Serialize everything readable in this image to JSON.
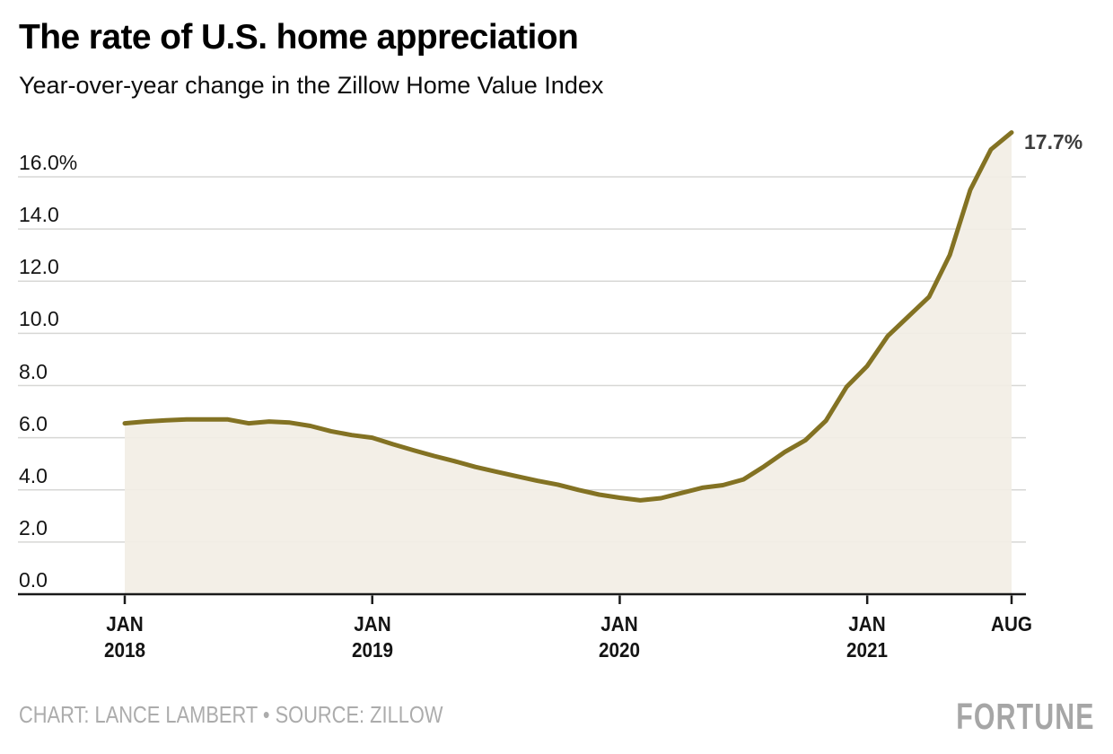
{
  "chart_data": {
    "type": "area",
    "title": "The rate of U.S. home appreciation",
    "subtitle": "Year-over-year change in the Zillow Home Value Index",
    "unit": "%",
    "categories": [
      "Jan 2018",
      "Feb 2018",
      "Mar 2018",
      "Apr 2018",
      "May 2018",
      "Jun 2018",
      "Jul 2018",
      "Aug 2018",
      "Sep 2018",
      "Oct 2018",
      "Nov 2018",
      "Dec 2018",
      "Jan 2019",
      "Feb 2019",
      "Mar 2019",
      "Apr 2019",
      "May 2019",
      "Jun 2019",
      "Jul 2019",
      "Aug 2019",
      "Sep 2019",
      "Oct 2019",
      "Nov 2019",
      "Dec 2019",
      "Jan 2020",
      "Feb 2020",
      "Mar 2020",
      "Apr 2020",
      "May 2020",
      "Jun 2020",
      "Jul 2020",
      "Aug 2020",
      "Sep 2020",
      "Oct 2020",
      "Nov 2020",
      "Dec 2020",
      "Jan 2021",
      "Feb 2021",
      "Mar 2021",
      "Apr 2021",
      "May 2021",
      "Jun 2021",
      "Jul 2021",
      "Aug 2021"
    ],
    "values": [
      6.55,
      6.62,
      6.67,
      6.7,
      6.7,
      6.7,
      6.55,
      6.62,
      6.58,
      6.45,
      6.25,
      6.1,
      6.0,
      5.75,
      5.52,
      5.3,
      5.1,
      4.88,
      4.7,
      4.52,
      4.35,
      4.2,
      4.0,
      3.82,
      3.7,
      3.6,
      3.68,
      3.88,
      4.08,
      4.18,
      4.4,
      4.9,
      5.45,
      5.9,
      6.65,
      7.95,
      8.75,
      9.9,
      10.65,
      11.4,
      13.0,
      15.5,
      17.05,
      17.7
    ],
    "end_label": "17.7%",
    "ylim": [
      0,
      17.7
    ],
    "y_ticks": [
      0,
      2,
      4,
      6,
      8,
      10,
      12,
      14,
      16
    ],
    "y_top_tick_label": "16.0%",
    "x_ticks": [
      {
        "index": 0,
        "line1": "JAN",
        "line2": "2018"
      },
      {
        "index": 12,
        "line1": "JAN",
        "line2": "2019"
      },
      {
        "index": 24,
        "line1": "JAN",
        "line2": "2020"
      },
      {
        "index": 36,
        "line1": "JAN",
        "line2": "2021"
      },
      {
        "index": 43,
        "line1": "AUG",
        "line2": ""
      }
    ],
    "grid": true,
    "legend": false,
    "line_color": "#837223",
    "fill_color": "#f2eee5",
    "grid_color": "#d7d7d5",
    "axis_color": "#1a1a1a",
    "xlabel": "",
    "ylabel": ""
  },
  "footer": {
    "credit": "CHART: LANCE LAMBERT • SOURCE: ZILLOW",
    "logo": "FORTUNE"
  }
}
